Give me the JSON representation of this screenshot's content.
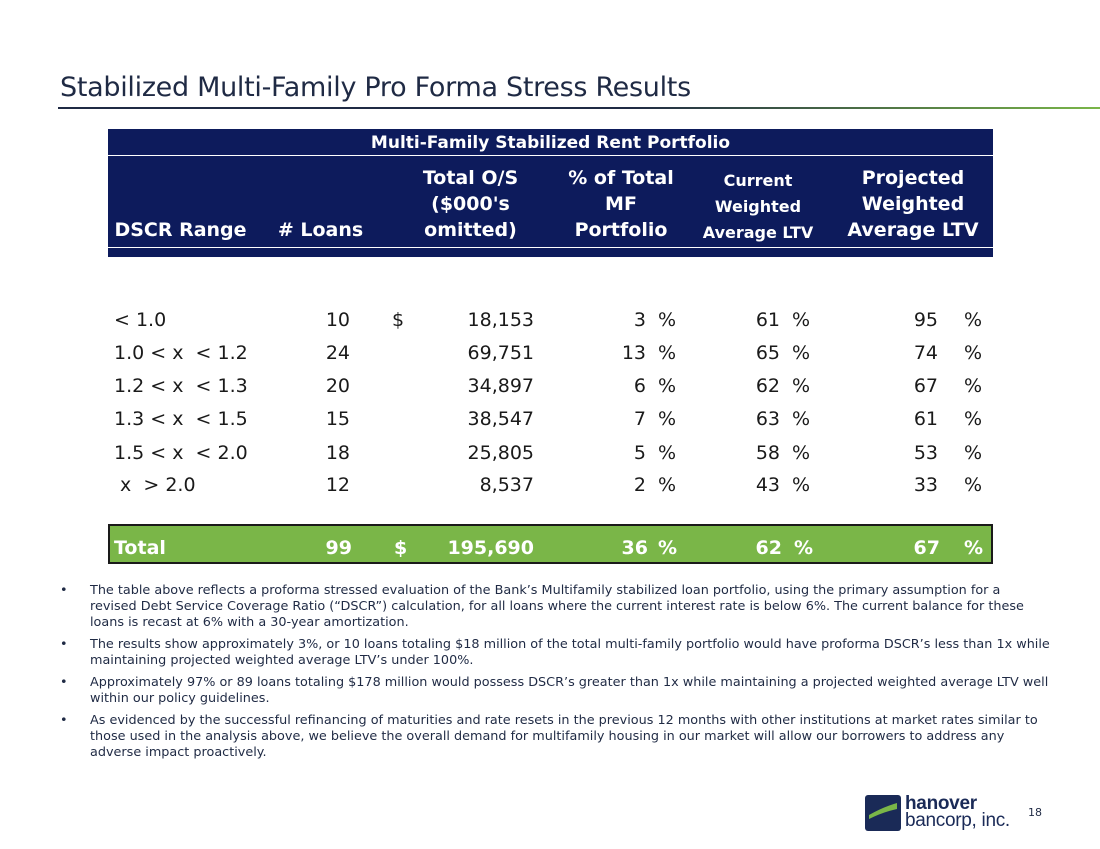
{
  "title": "Stabilized Multi-Family Pro Forma Stress Results",
  "table": {
    "caption": "Multi-Family Stabilized Rent Portfolio",
    "headers": {
      "range": "DSCR Range",
      "loans": "# Loans",
      "os_l1": "Total O/S",
      "os_l2": "($000's",
      "os_l3": "omitted)",
      "pct_l1": "% of Total",
      "pct_l2": "MF",
      "pct_l3": "Portfolio",
      "cur_l1": "Current",
      "cur_l2": "Weighted",
      "cur_l3": "Average LTV",
      "proj_l1": "Projected",
      "proj_l2": "Weighted",
      "proj_l3": "Average LTV"
    },
    "rows": [
      {
        "range": "< 1.0",
        "loans": "10",
        "dollar": "$",
        "os": "18,153",
        "pct": "3",
        "cur": "61",
        "proj": "95"
      },
      {
        "range": "1.0 < x  < 1.2",
        "loans": "24",
        "dollar": "",
        "os": "69,751",
        "pct": "13",
        "cur": "65",
        "proj": "74"
      },
      {
        "range": "1.2 < x  < 1.3",
        "loans": "20",
        "dollar": "",
        "os": "34,897",
        "pct": "6",
        "cur": "62",
        "proj": "67"
      },
      {
        "range": "1.3 < x  < 1.5",
        "loans": "15",
        "dollar": "",
        "os": "38,547",
        "pct": "7",
        "cur": "63",
        "proj": "61"
      },
      {
        "range": "1.5 < x  < 2.0",
        "loans": "18",
        "dollar": "",
        "os": "25,805",
        "pct": "5",
        "cur": "58",
        "proj": "53"
      },
      {
        "range": " x  > 2.0",
        "loans": "12",
        "dollar": "",
        "os": "8,537",
        "pct": "2",
        "cur": "43",
        "proj": "33"
      }
    ],
    "pct_sign": "%",
    "total": {
      "label": "Total",
      "loans": "99",
      "dollar": "$",
      "os": "195,690",
      "pct": "36",
      "cur": "62",
      "proj": "67"
    }
  },
  "bullets": [
    "The table above reflects a proforma stressed evaluation of the Bank’s Multifamily stabilized loan portfolio, using the primary assumption for a revised Debt Service Coverage Ratio (“DSCR”) calculation, for all loans where the current interest rate is below 6%.  The current balance for these loans is recast at 6% with a 30-year amortization.",
    "The results show approximately 3%, or 10 loans totaling $18 million of the total multi-family portfolio would have proforma DSCR’s less than 1x while maintaining projected weighted average LTV’s under 100%.",
    "Approximately 97% or 89 loans totaling $178 million would possess DSCR’s greater than 1x while maintaining a projected weighted average LTV well within our policy guidelines.",
    "As evidenced by the successful refinancing of maturities and rate resets in the previous 12 months with other institutions at market rates similar to those used in the analysis above, we believe the overall demand for multifamily housing in our market will allow our borrowers to address any adverse impact proactively."
  ],
  "logo": {
    "line1": "hanover",
    "line2": "bancorp, inc.",
    "mark": "hanover-logo-icon"
  },
  "page_number": "18",
  "colors": {
    "navy": "#0d1b5c",
    "green": "#7ab648",
    "text": "#1f2a44"
  }
}
